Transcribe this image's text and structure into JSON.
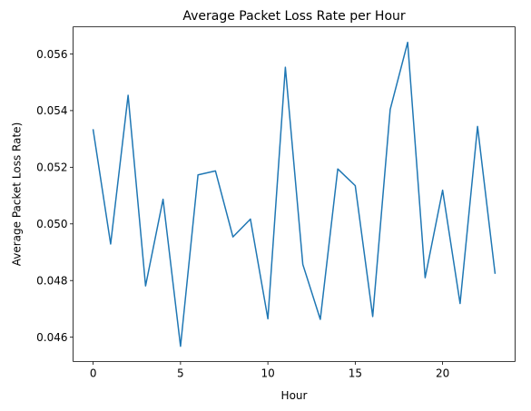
{
  "chart_data": {
    "type": "line",
    "title": "Average Packet Loss Rate per Hour",
    "xlabel": "Hour",
    "ylabel": "Average Packet Loss Rate)",
    "x": [
      0,
      1,
      2,
      3,
      4,
      5,
      6,
      7,
      8,
      9,
      10,
      11,
      12,
      13,
      14,
      15,
      16,
      17,
      18,
      19,
      20,
      21,
      22,
      23
    ],
    "series": [
      {
        "values": [
          0.05332,
          0.04929,
          0.05454,
          0.04781,
          0.05087,
          0.04568,
          0.05173,
          0.05187,
          0.04954,
          0.05017,
          0.04665,
          0.05553,
          0.04857,
          0.04663,
          0.05194,
          0.05135,
          0.04673,
          0.05404,
          0.05641,
          0.0481,
          0.05119,
          0.04719,
          0.05344,
          0.04826
        ],
        "color": "#1f77b4"
      }
    ],
    "xlim": [
      -1.15,
      24.15
    ],
    "ylim": [
      0.04514,
      0.05696
    ],
    "xticks": [
      0,
      5,
      10,
      15,
      20
    ],
    "xtick_labels": [
      "0",
      "5",
      "10",
      "15",
      "20"
    ],
    "yticks": [
      0.046,
      0.048,
      0.05,
      0.052,
      0.054,
      0.056
    ],
    "ytick_labels": [
      "0.046",
      "0.048",
      "0.050",
      "0.052",
      "0.054",
      "0.056"
    ],
    "grid": false,
    "legend": false
  }
}
